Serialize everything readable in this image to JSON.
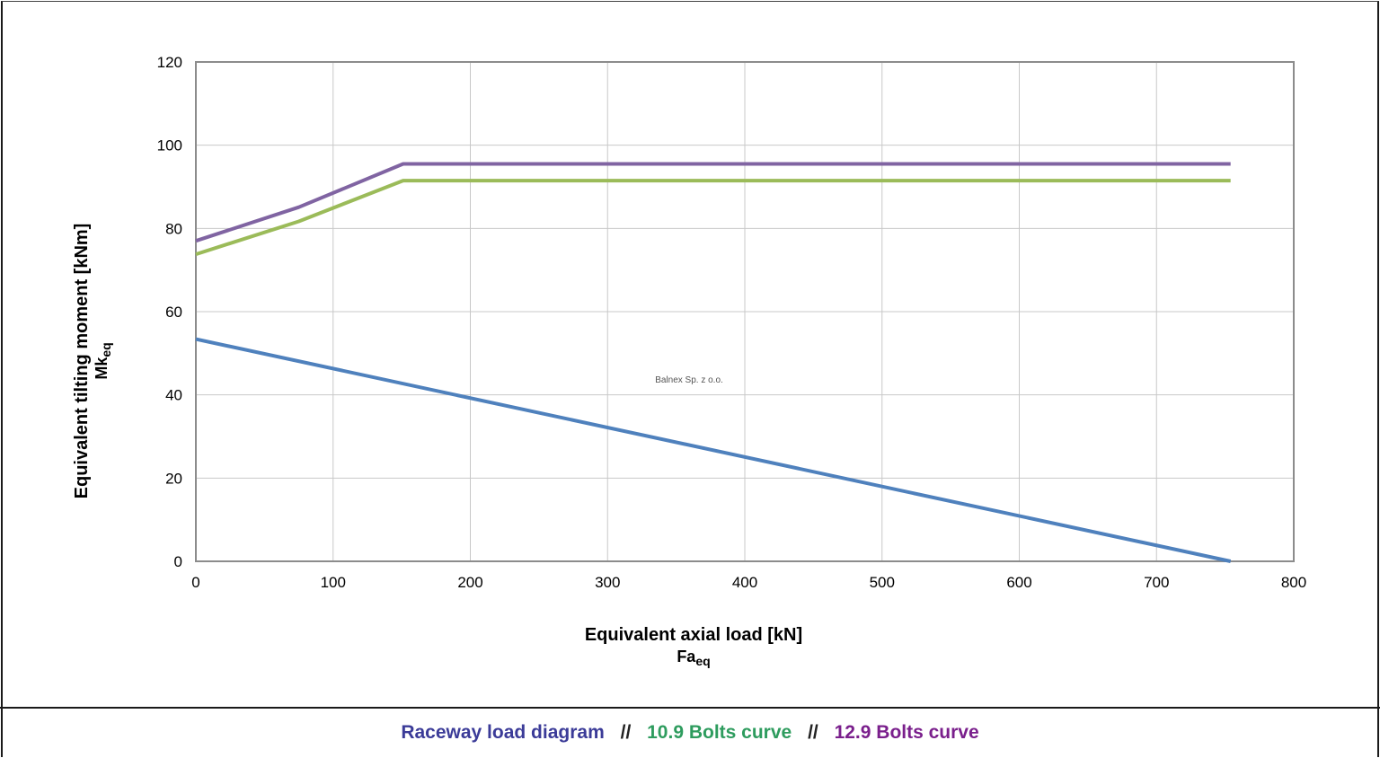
{
  "chart_data": {
    "type": "line",
    "title": "",
    "xlabel": "Equivalent axial load [kN]",
    "xlabel_sub": {
      "main": "Fa",
      "subscript": "eq"
    },
    "ylabel": "Equivalent tilting moment [kNm]",
    "ylabel_sub": {
      "main": "Mk",
      "subscript": "eq"
    },
    "xlim": [
      0,
      800
    ],
    "ylim": [
      0,
      120
    ],
    "xticks": [
      "0",
      "100",
      "200",
      "300",
      "400",
      "500",
      "600",
      "700",
      "800"
    ],
    "yticks": [
      "0",
      "20",
      "40",
      "60",
      "80",
      "100",
      "120"
    ],
    "grid": true,
    "series": [
      {
        "name": "Raceway load diagram",
        "color": "#4F81BD",
        "x": [
          0,
          754
        ],
        "y": [
          53.4,
          0
        ]
      },
      {
        "name": "10.9 Bolts curve",
        "color": "#9BBB59",
        "x": [
          0,
          75,
          151,
          754
        ],
        "y": [
          73.8,
          81.7,
          91.5,
          91.5
        ]
      },
      {
        "name": "12.9 Bolts curve",
        "color": "#8064A2",
        "x": [
          0,
          75,
          151,
          754
        ],
        "y": [
          77.0,
          85.1,
          95.5,
          95.5
        ]
      }
    ],
    "annotation": "Balnex Sp. z o.o."
  },
  "legend": {
    "separator": "//",
    "items": [
      {
        "label": "Raceway load diagram",
        "color": "#3B3B98"
      },
      {
        "label": "10.9 Bolts curve",
        "color": "#2E9C5E"
      },
      {
        "label": "12.9 Bolts curve",
        "color": "#7A1F8C"
      }
    ]
  }
}
